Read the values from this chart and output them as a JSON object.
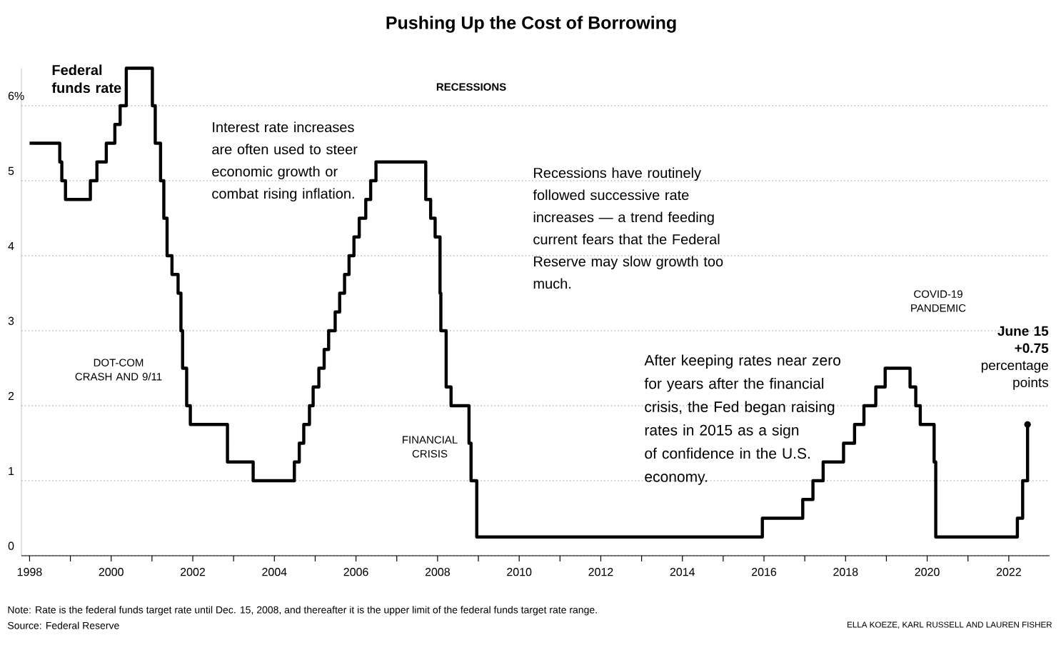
{
  "chart_data": {
    "type": "step",
    "title": "Pushing Up the Cost of Borrowing",
    "ylabel": "Federal funds rate",
    "color": "#000000",
    "x": [
      1998.0,
      1998.74,
      1998.79,
      1998.88,
      1999.49,
      1999.65,
      1999.88,
      2000.09,
      2000.22,
      2000.37,
      2001.01,
      2001.08,
      2001.21,
      2001.29,
      2001.37,
      2001.49,
      2001.64,
      2001.71,
      2001.75,
      2001.85,
      2001.94,
      2002.85,
      2003.48,
      2004.49,
      2004.61,
      2004.72,
      2004.86,
      2004.95,
      2005.09,
      2005.22,
      2005.33,
      2005.49,
      2005.6,
      2005.72,
      2005.83,
      2005.95,
      2006.08,
      2006.24,
      2006.36,
      2006.49,
      2007.71,
      2007.83,
      2007.94,
      2008.06,
      2008.08,
      2008.21,
      2008.33,
      2008.77,
      2008.82,
      2008.96,
      2015.96,
      2016.95,
      2017.2,
      2017.45,
      2017.95,
      2018.22,
      2018.45,
      2018.74,
      2018.97,
      2019.58,
      2019.72,
      2019.83,
      2020.17,
      2020.21,
      2022.21,
      2022.34,
      2022.46
    ],
    "values": [
      5.5,
      5.25,
      5.0,
      4.75,
      5.0,
      5.25,
      5.5,
      5.75,
      6.0,
      6.5,
      6.0,
      5.5,
      5.0,
      4.5,
      4.0,
      3.75,
      3.5,
      3.0,
      2.5,
      2.0,
      1.75,
      1.25,
      1.0,
      1.25,
      1.5,
      1.75,
      2.0,
      2.25,
      2.5,
      2.75,
      3.0,
      3.25,
      3.5,
      3.75,
      4.0,
      4.25,
      4.5,
      4.75,
      5.0,
      5.25,
      4.75,
      4.5,
      4.25,
      3.5,
      3.0,
      2.25,
      2.0,
      1.5,
      1.0,
      0.25,
      0.5,
      0.75,
      1.0,
      1.25,
      1.5,
      1.75,
      2.0,
      2.25,
      2.5,
      2.25,
      2.0,
      1.75,
      1.25,
      0.25,
      0.5,
      1.0,
      1.75
    ],
    "xlim": [
      1997.8,
      2023.0
    ],
    "xticks": [
      1998,
      {
        "value": 1999,
        "label": null
      },
      2000,
      {
        "value": 2001,
        "label": null
      },
      2002,
      {
        "value": 2003,
        "label": null
      },
      2004,
      {
        "value": 2005,
        "label": null
      },
      2006,
      {
        "value": 2007,
        "label": null
      },
      2008,
      {
        "value": 2009,
        "label": null
      },
      2010,
      {
        "value": 2011,
        "label": null
      },
      2012,
      {
        "value": 2013,
        "label": null
      },
      2014,
      {
        "value": 2015,
        "label": null
      },
      2016,
      {
        "value": 2017,
        "label": null
      },
      2018,
      {
        "value": 2019,
        "label": null
      },
      2020,
      {
        "value": 2021,
        "label": null
      },
      2022
    ],
    "ylim": [
      0,
      6.5
    ],
    "yticks": [
      0,
      1,
      2,
      3,
      4,
      5,
      {
        "value": 6,
        "label": "6%"
      }
    ],
    "grid": "y",
    "annotations": [
      "RECESSIONS",
      "Interest rate increases are often used to steer economic growth or combat rising inflation.",
      "Recessions have routinely followed successive rate increases — a trend feeding current fears that the Federal Reserve may slow growth too much.",
      "DOT-COM CRASH AND 9/11",
      "FINANCIAL CRISIS",
      "COVID-19 PANDEMIC",
      "After keeping rates near zero for years after the financial crisis, the Fed began raising rates in 2015 as a sign of confidence in the U.S. economy.",
      {
        "text": "**June 15 +0.75** percentage points",
        "x": 2022.46,
        "y": 1.75
      },
      "Note: Rate is the federal funds target rate until Dec. 15, 2008, and thereafter it is the upper limit of the federal funds target rate range.",
      "Source: Federal Reserve",
      "ELLA KOEZE, KARL RUSSELL AND LAUREN FISHER"
    ]
  }
}
